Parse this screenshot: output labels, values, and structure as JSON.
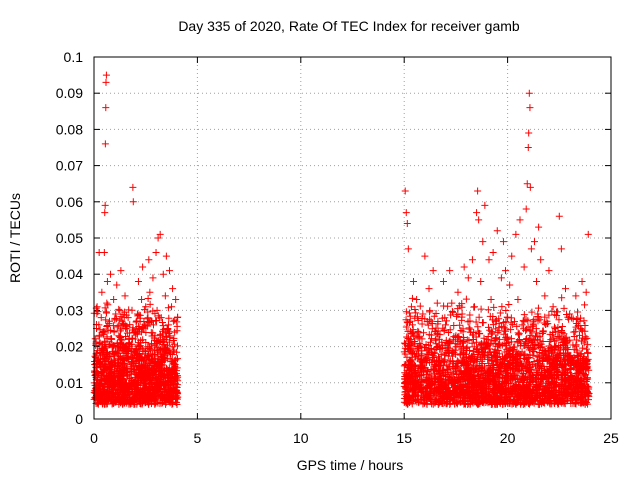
{
  "chart_data": {
    "type": "scatter",
    "title": "Day 335 of 2020, Rate Of TEC Index for receiver gamb",
    "xlabel": "GPS time / hours",
    "ylabel": "ROTI / TECUs",
    "xlim": [
      0,
      25
    ],
    "ylim": [
      0,
      0.1
    ],
    "xticks": [
      0,
      5,
      10,
      15,
      20,
      25
    ],
    "xtick_labels": [
      "0",
      "5",
      "10",
      "15",
      "20",
      "25"
    ],
    "yticks": [
      0,
      0.01,
      0.02,
      0.03,
      0.04,
      0.05,
      0.06,
      0.07,
      0.08,
      0.09,
      0.1
    ],
    "ytick_labels": [
      "0",
      "0.01",
      "0.02",
      "0.03",
      "0.04",
      "0.05",
      "0.06",
      "0.07",
      "0.08",
      "0.09",
      "0.1"
    ],
    "grid": true,
    "marker": "+",
    "color": "#ff0000",
    "series": [
      {
        "name": "ROTI",
        "points": [
          [
            0.05,
            0.012
          ],
          [
            0.1,
            0.018
          ],
          [
            0.12,
            0.025
          ],
          [
            0.15,
            0.031
          ],
          [
            0.2,
            0.015
          ],
          [
            0.22,
            0.009
          ],
          [
            0.25,
            0.046
          ],
          [
            0.3,
            0.021
          ],
          [
            0.35,
            0.028
          ],
          [
            0.38,
            0.035
          ],
          [
            0.4,
            0.013
          ],
          [
            0.45,
            0.019
          ],
          [
            0.48,
            0.024
          ],
          [
            0.5,
            0.046
          ],
          [
            0.52,
            0.057
          ],
          [
            0.54,
            0.059
          ],
          [
            0.55,
            0.076
          ],
          [
            0.57,
            0.086
          ],
          [
            0.58,
            0.093
          ],
          [
            0.6,
            0.095
          ],
          [
            0.62,
            0.032
          ],
          [
            0.65,
            0.038
          ],
          [
            0.7,
            0.016
          ],
          [
            0.75,
            0.027
          ],
          [
            0.8,
            0.04
          ],
          [
            0.85,
            0.022
          ],
          [
            0.9,
            0.011
          ],
          [
            0.95,
            0.033
          ],
          [
            1.0,
            0.018
          ],
          [
            1.05,
            0.029
          ],
          [
            1.1,
            0.037
          ],
          [
            1.15,
            0.014
          ],
          [
            1.2,
            0.023
          ],
          [
            1.25,
            0.03
          ],
          [
            1.3,
            0.041
          ],
          [
            1.35,
            0.019
          ],
          [
            1.4,
            0.012
          ],
          [
            1.45,
            0.026
          ],
          [
            1.5,
            0.034
          ],
          [
            1.55,
            0.02
          ],
          [
            1.6,
            0.015
          ],
          [
            1.65,
            0.028
          ],
          [
            1.7,
            0.022
          ],
          [
            1.75,
            0.009
          ],
          [
            1.8,
            0.013
          ],
          [
            1.85,
            0.017
          ],
          [
            1.88,
            0.064
          ],
          [
            1.9,
            0.06
          ],
          [
            1.95,
            0.024
          ],
          [
            2.0,
            0.011
          ],
          [
            2.05,
            0.019
          ],
          [
            2.1,
            0.029
          ],
          [
            2.15,
            0.038
          ],
          [
            2.2,
            0.014
          ],
          [
            2.25,
            0.021
          ],
          [
            2.3,
            0.033
          ],
          [
            2.35,
            0.042
          ],
          [
            2.4,
            0.016
          ],
          [
            2.45,
            0.026
          ],
          [
            2.5,
            0.031
          ],
          [
            2.55,
            0.012
          ],
          [
            2.6,
            0.02
          ],
          [
            2.65,
            0.044
          ],
          [
            2.7,
            0.035
          ],
          [
            2.75,
            0.018
          ],
          [
            2.8,
            0.027
          ],
          [
            2.85,
            0.039
          ],
          [
            2.9,
            0.013
          ],
          [
            2.95,
            0.023
          ],
          [
            3.0,
            0.046
          ],
          [
            3.05,
            0.03
          ],
          [
            3.1,
            0.05
          ],
          [
            3.15,
            0.019
          ],
          [
            3.2,
            0.051
          ],
          [
            3.25,
            0.028
          ],
          [
            3.3,
            0.015
          ],
          [
            3.35,
            0.04
          ],
          [
            3.4,
            0.022
          ],
          [
            3.45,
            0.034
          ],
          [
            3.5,
            0.045
          ],
          [
            3.55,
            0.012
          ],
          [
            3.6,
            0.026
          ],
          [
            3.65,
            0.041
          ],
          [
            3.7,
            0.018
          ],
          [
            3.75,
            0.031
          ],
          [
            3.8,
            0.036
          ],
          [
            3.85,
            0.014
          ],
          [
            3.9,
            0.024
          ],
          [
            3.95,
            0.033
          ],
          [
            4.0,
            0.011
          ],
          [
            15.05,
            0.063
          ],
          [
            15.1,
            0.057
          ],
          [
            15.15,
            0.054
          ],
          [
            15.2,
            0.047
          ],
          [
            15.25,
            0.021
          ],
          [
            15.3,
            0.014
          ],
          [
            15.35,
            0.031
          ],
          [
            15.4,
            0.026
          ],
          [
            15.45,
            0.038
          ],
          [
            15.5,
            0.018
          ],
          [
            15.6,
            0.033
          ],
          [
            15.7,
            0.024
          ],
          [
            15.8,
            0.012
          ],
          [
            15.9,
            0.029
          ],
          [
            16.0,
            0.045
          ],
          [
            16.1,
            0.019
          ],
          [
            16.2,
            0.036
          ],
          [
            16.3,
            0.027
          ],
          [
            16.4,
            0.041
          ],
          [
            16.5,
            0.015
          ],
          [
            16.6,
            0.032
          ],
          [
            16.7,
            0.022
          ],
          [
            16.8,
            0.011
          ],
          [
            16.9,
            0.038
          ],
          [
            17.0,
            0.026
          ],
          [
            17.1,
            0.019
          ],
          [
            17.2,
            0.041
          ],
          [
            17.3,
            0.032
          ],
          [
            17.4,
            0.014
          ],
          [
            17.5,
            0.023
          ],
          [
            17.6,
            0.035
          ],
          [
            17.7,
            0.018
          ],
          [
            17.8,
            0.029
          ],
          [
            17.9,
            0.042
          ],
          [
            18.0,
            0.013
          ],
          [
            18.1,
            0.039
          ],
          [
            18.2,
            0.024
          ],
          [
            18.3,
            0.044
          ],
          [
            18.4,
            0.031
          ],
          [
            18.5,
            0.057
          ],
          [
            18.55,
            0.063
          ],
          [
            18.6,
            0.055
          ],
          [
            18.7,
            0.038
          ],
          [
            18.8,
            0.049
          ],
          [
            18.9,
            0.059
          ],
          [
            19.0,
            0.022
          ],
          [
            19.1,
            0.044
          ],
          [
            19.2,
            0.033
          ],
          [
            19.3,
            0.046
          ],
          [
            19.4,
            0.027
          ],
          [
            19.5,
            0.052
          ],
          [
            19.6,
            0.018
          ],
          [
            19.7,
            0.039
          ],
          [
            19.8,
            0.049
          ],
          [
            19.9,
            0.041
          ],
          [
            20.0,
            0.028
          ],
          [
            20.1,
            0.037
          ],
          [
            20.2,
            0.045
          ],
          [
            20.3,
            0.019
          ],
          [
            20.4,
            0.051
          ],
          [
            20.5,
            0.033
          ],
          [
            20.6,
            0.055
          ],
          [
            20.7,
            0.026
          ],
          [
            20.8,
            0.042
          ],
          [
            20.9,
            0.058
          ],
          [
            20.95,
            0.065
          ],
          [
            21.0,
            0.075
          ],
          [
            21.02,
            0.079
          ],
          [
            21.05,
            0.09
          ],
          [
            21.08,
            0.086
          ],
          [
            21.1,
            0.064
          ],
          [
            21.15,
            0.047
          ],
          [
            21.2,
            0.021
          ],
          [
            21.3,
            0.049
          ],
          [
            21.4,
            0.038
          ],
          [
            21.5,
            0.053
          ],
          [
            21.6,
            0.044
          ],
          [
            21.7,
            0.016
          ],
          [
            21.8,
            0.034
          ],
          [
            21.9,
            0.027
          ],
          [
            22.0,
            0.041
          ],
          [
            22.1,
            0.019
          ],
          [
            22.2,
            0.031
          ],
          [
            22.3,
            0.025
          ],
          [
            22.4,
            0.013
          ],
          [
            22.5,
            0.056
          ],
          [
            22.6,
            0.047
          ],
          [
            22.7,
            0.022
          ],
          [
            22.8,
            0.036
          ],
          [
            22.9,
            0.018
          ],
          [
            23.0,
            0.029
          ],
          [
            23.1,
            0.012
          ],
          [
            23.2,
            0.024
          ],
          [
            23.3,
            0.034
          ],
          [
            23.4,
            0.016
          ],
          [
            23.5,
            0.027
          ],
          [
            23.6,
            0.038
          ],
          [
            23.7,
            0.021
          ],
          [
            23.8,
            0.035
          ],
          [
            23.9,
            0.051
          ]
        ],
        "bands": [
          {
            "x_range": [
              0.0,
              4.05
            ],
            "y_range": [
              0.004,
              0.03
            ],
            "count": 1400
          },
          {
            "x_range": [
              15.0,
              23.95
            ],
            "y_range": [
              0.004,
              0.03
            ],
            "count": 2600
          }
        ]
      }
    ]
  }
}
